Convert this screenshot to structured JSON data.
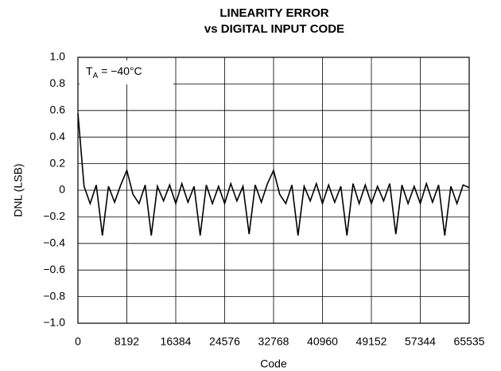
{
  "chart_data": {
    "type": "line",
    "title": [
      "LINEARITY ERROR",
      "vs DIGITAL INPUT CODE"
    ],
    "xlabel": "Code",
    "ylabel": "DNL (LSB)",
    "annotation": {
      "symbol": "T",
      "subscript": "A",
      "text": " = −40°C"
    },
    "color": "#000000",
    "grid": true,
    "x": [
      0,
      1024,
      2048,
      3072,
      4096,
      5120,
      6144,
      7168,
      8192,
      9216,
      10240,
      11264,
      12288,
      13312,
      14336,
      15360,
      16384,
      17408,
      18432,
      19456,
      20480,
      21504,
      22528,
      23552,
      24576,
      25600,
      26624,
      27648,
      28672,
      29696,
      30720,
      31744,
      32768,
      33792,
      34816,
      35840,
      36864,
      37888,
      38912,
      39936,
      40960,
      41984,
      43008,
      44032,
      45056,
      46080,
      47104,
      48128,
      49152,
      50176,
      51200,
      52224,
      53248,
      54272,
      55296,
      56320,
      57344,
      58368,
      59392,
      60416,
      61440,
      62464,
      63488,
      64512,
      65535
    ],
    "values": [
      0.58,
      0.03,
      -0.1,
      0.04,
      -0.34,
      0.03,
      -0.09,
      0.04,
      0.15,
      -0.03,
      -0.1,
      0.04,
      -0.34,
      0.03,
      -0.08,
      0.04,
      -0.1,
      0.05,
      -0.09,
      0.03,
      -0.34,
      0.04,
      -0.1,
      0.03,
      -0.1,
      0.05,
      -0.08,
      0.03,
      -0.33,
      0.04,
      -0.09,
      0.05,
      0.15,
      -0.03,
      -0.1,
      0.04,
      -0.34,
      0.03,
      -0.08,
      0.05,
      -0.1,
      0.04,
      -0.09,
      0.03,
      -0.34,
      0.05,
      -0.1,
      0.04,
      -0.1,
      0.03,
      -0.08,
      0.05,
      -0.33,
      0.04,
      -0.1,
      0.03,
      -0.1,
      0.05,
      -0.09,
      0.04,
      -0.34,
      0.03,
      -0.1,
      0.04,
      0.02
    ],
    "xlim": [
      0,
      65535
    ],
    "xticks": [
      0,
      8192,
      16384,
      24576,
      32768,
      40960,
      49152,
      57344,
      65535
    ],
    "ylim": [
      -1,
      1
    ],
    "yticks": [
      {
        "value": -1,
        "label": "−1.0"
      },
      {
        "value": -0.8,
        "label": "−0.8"
      },
      {
        "value": -0.6,
        "label": "−0.6"
      },
      {
        "value": -0.4,
        "label": "−0.4"
      },
      {
        "value": -0.2,
        "label": "−0.2"
      },
      0,
      0.2,
      0.4,
      0.6,
      0.8,
      {
        "value": 1,
        "label": "1.0"
      }
    ]
  }
}
